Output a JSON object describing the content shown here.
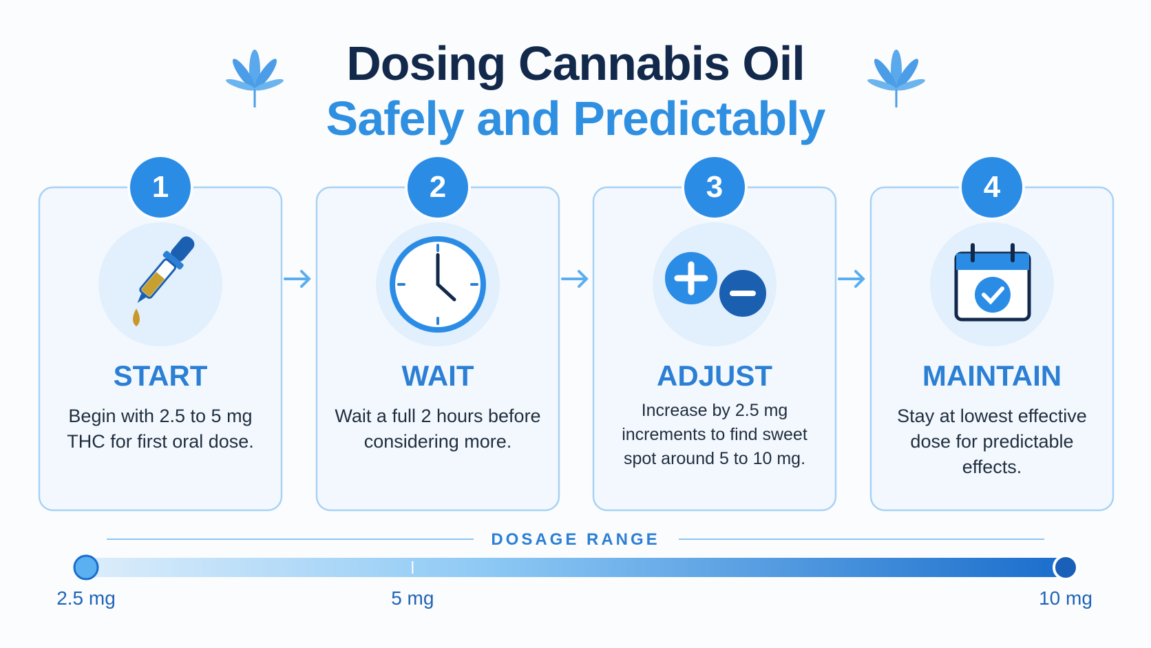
{
  "header": {
    "title_line1": "Dosing Cannabis Oil",
    "title_line2": "Safely and Predictably"
  },
  "steps": [
    {
      "number": "1",
      "title": "START",
      "text": "Begin with 2.5 to 5 mg THC for first oral dose."
    },
    {
      "number": "2",
      "title": "WAIT",
      "text": "Wait a full 2 hours before considering more."
    },
    {
      "number": "3",
      "title": "ADJUST",
      "text": "Increase by 2.5 mg increments to find sweet spot around 5 to 10 mg."
    },
    {
      "number": "4",
      "title": "MAINTAIN",
      "text": "Stay at lowest effective dose for predictable effects."
    }
  ],
  "dosage_range": {
    "label": "DOSAGE RANGE",
    "ticks": [
      {
        "value": 2.5,
        "label": "2.5 mg"
      },
      {
        "value": 5,
        "label": "5 mg"
      },
      {
        "value": 10,
        "label": "10 mg"
      }
    ]
  }
}
